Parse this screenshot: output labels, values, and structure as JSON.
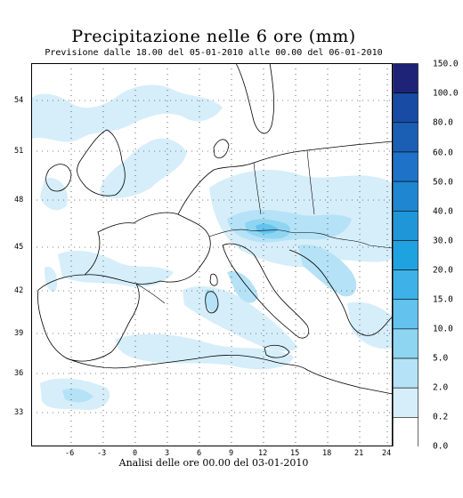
{
  "header": {
    "title": "Precipitazione nelle 6 ore (mm)",
    "subtitle": "Previsione dalle 18.00 del 05-01-2010 alle 00.00 del 06-01-2010"
  },
  "footer": {
    "text": "Analisi delle ore 00.00 del 03-01-2010"
  },
  "map": {
    "lon_range": [
      -11,
      27
    ],
    "lat_range": [
      29.5,
      56.5
    ],
    "lon_ticks": [
      "-6",
      "-3",
      "0",
      "3",
      "6",
      "9",
      "12",
      "15",
      "18",
      "21",
      "24"
    ],
    "lat_ticks": [
      "54",
      "51",
      "48",
      "45",
      "42",
      "39",
      "36",
      "33"
    ]
  },
  "legend": {
    "labels": [
      "150.0",
      "100.0",
      "80.0",
      "60.0",
      "50.0",
      "40.0",
      "30.0",
      "20.0",
      "15.0",
      "10.0",
      "5.0",
      "2.0",
      "0.2",
      "0.0"
    ],
    "colors": [
      "#1f2378",
      "#174ba4",
      "#1a5fb4",
      "#1e72c8",
      "#1f86d2",
      "#1f96d8",
      "#1fa3e0",
      "#3eb2e8",
      "#63c3ee",
      "#8ed5f2",
      "#b5e2f6",
      "#d6eefa",
      "#ffffff"
    ]
  }
}
